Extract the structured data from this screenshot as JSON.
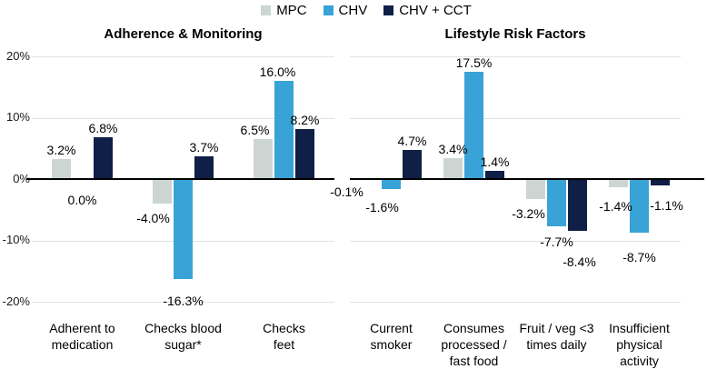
{
  "legend": {
    "items": [
      {
        "label": "MPC",
        "color": "#ccd5d2"
      },
      {
        "label": "CHV",
        "color": "#39a3d8"
      },
      {
        "label": "CHV + CCT",
        "color": "#0f1f45"
      }
    ]
  },
  "chart_data": {
    "type": "bar",
    "series_names": [
      "MPC",
      "CHV",
      "CHV + CCT"
    ],
    "series_colors": [
      "#ccd5d2",
      "#39a3d8",
      "#0f1f45"
    ],
    "ylim": [
      -20,
      20
    ],
    "yticks": [
      20,
      10,
      0,
      -10,
      -20
    ],
    "ytick_labels": [
      "20%",
      "10%",
      "0%",
      "-10%",
      "-20%"
    ],
    "grid": true,
    "legend_position": "top",
    "panels": [
      {
        "title": "Adherence & Monitoring",
        "categories": [
          [
            "Adherent to",
            "medication"
          ],
          [
            "Checks blood",
            "sugar*"
          ],
          [
            "Checks feet"
          ]
        ],
        "series": [
          {
            "name": "MPC",
            "values": [
              3.2,
              -4.0,
              6.5
            ],
            "labels": [
              "3.2%",
              "-4.0%",
              "6.5%"
            ]
          },
          {
            "name": "CHV",
            "values": [
              0.0,
              -16.3,
              16.0
            ],
            "labels": [
              "0.0%",
              "-16.3%",
              "16.0%"
            ]
          },
          {
            "name": "CHV + CCT",
            "values": [
              6.8,
              3.7,
              8.2
            ],
            "labels": [
              "6.8%",
              "3.7%",
              "8.2%"
            ]
          }
        ]
      },
      {
        "title": "Lifestyle Risk Factors",
        "categories": [
          [
            "Current",
            "smoker"
          ],
          [
            "Consumes",
            "processed /",
            "fast food"
          ],
          [
            "Fruit / veg <3",
            "times daily"
          ],
          [
            "Insufficient",
            "physical",
            "activity"
          ]
        ],
        "series": [
          {
            "name": "MPC",
            "values": [
              -0.1,
              3.4,
              -3.2,
              -1.4
            ],
            "labels": [
              "-0.1%",
              "3.4%",
              "-3.2%",
              "-1.4%"
            ]
          },
          {
            "name": "CHV",
            "values": [
              -1.6,
              17.5,
              -7.7,
              -8.7
            ],
            "labels": [
              "-1.6%",
              "17.5%",
              "-7.7%",
              "-8.7%"
            ]
          },
          {
            "name": "CHV + CCT",
            "values": [
              4.7,
              1.4,
              -8.4,
              -1.1
            ],
            "labels": [
              "4.7%",
              "1.4%",
              "-8.4%",
              "-1.1%"
            ]
          }
        ]
      }
    ],
    "label_nudges": {
      "0-1-0": {
        "dx": 0,
        "dy": 33
      },
      "0-0-1": {
        "dx": -10,
        "dy": 6
      },
      "0-1-1": {
        "dx": 0,
        "dy": 14
      },
      "0-0-2": {
        "dx": -9,
        "dy": 0
      },
      "0-1-2": {
        "dx": -7,
        "dy": 0
      },
      "1-0-0": {
        "dx": -26,
        "dy": 3
      },
      "1-1-0": {
        "dx": -10,
        "dy": 10
      },
      "1-0-2": {
        "dx": -8,
        "dy": 6
      },
      "1-1-2": {
        "dx": 0,
        "dy": 7
      },
      "1-2-2": {
        "dx": 2,
        "dy": 24
      },
      "1-0-3": {
        "dx": -3,
        "dy": 11
      },
      "1-1-3": {
        "dx": 0,
        "dy": 17
      },
      "1-2-3": {
        "dx": 7,
        "dy": 12
      }
    }
  }
}
